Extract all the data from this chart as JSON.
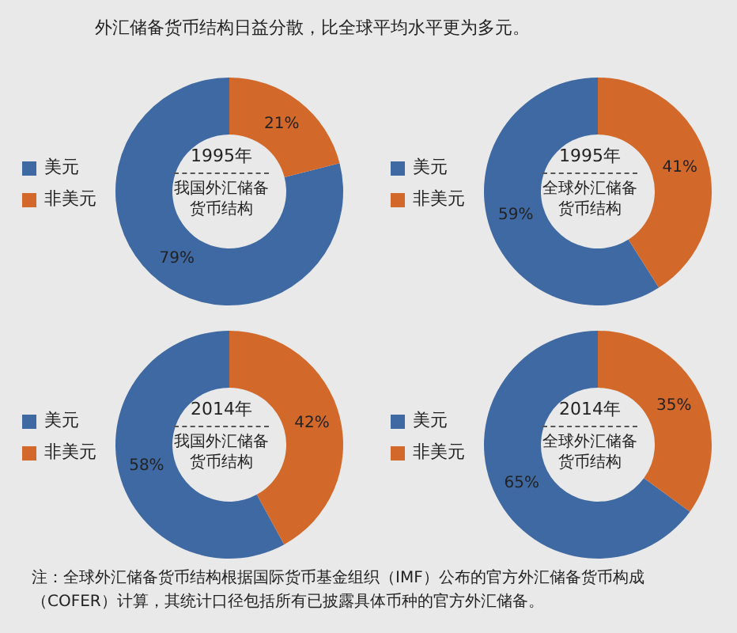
{
  "chart_data": [
    {
      "type": "donut",
      "title": "1995年",
      "subtitle": "我国外汇储备货币结构",
      "annotations": [
        "外汇储备货币结构日益分散，比全球平均水平更为多元。"
      ],
      "categories": [
        "美元",
        "非美元"
      ],
      "values": [
        79,
        21
      ],
      "value_labels": [
        "79%",
        "21%"
      ],
      "colors": [
        "#3f69a3",
        "#d2692b"
      ],
      "legend": "left"
    },
    {
      "type": "donut",
      "title": "1995年",
      "subtitle": "全球外汇储备货币结构",
      "categories": [
        "美元",
        "非美元"
      ],
      "values": [
        59,
        41
      ],
      "value_labels": [
        "59%",
        "41%"
      ],
      "colors": [
        "#3f69a3",
        "#d2692b"
      ],
      "legend": "left"
    },
    {
      "type": "donut",
      "title": "2014年",
      "subtitle": "我国外汇储备货币结构",
      "categories": [
        "美元",
        "非美元"
      ],
      "values": [
        58,
        42
      ],
      "value_labels": [
        "58%",
        "42%"
      ],
      "colors": [
        "#3f69a3",
        "#d2692b"
      ],
      "legend": "left"
    },
    {
      "type": "donut",
      "title": "2014年",
      "subtitle": "全球外汇储备货币结构",
      "annotations": [
        "注：全球外汇储备货币结构根据国际货币基金组织（IMF）公布的官方外汇储备货币构成（COFER）计算，其统计口径包括所有已披露具体币种的官方外汇储备。"
      ],
      "categories": [
        "美元",
        "非美元"
      ],
      "values": [
        65,
        35
      ],
      "value_labels": [
        "65%",
        "35%"
      ],
      "colors": [
        "#3f69a3",
        "#d2692b"
      ],
      "legend": "left"
    }
  ]
}
